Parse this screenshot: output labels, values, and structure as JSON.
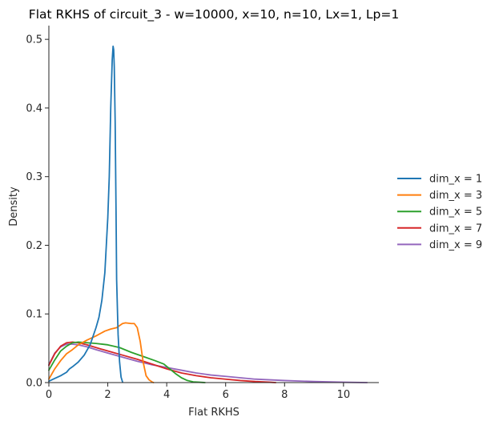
{
  "chart_data": {
    "type": "line",
    "title": "Flat RKHS of circuit_3 - w=10000, x=10, n=10, Lx=1, Lp=1",
    "xlabel": "Flat RKHS",
    "ylabel": "Density",
    "xlim": [
      0,
      11.2
    ],
    "ylim": [
      0,
      0.52
    ],
    "xticks": [
      0,
      2,
      4,
      6,
      8,
      10
    ],
    "yticks": [
      0.0,
      0.1,
      0.2,
      0.3,
      0.4,
      0.5
    ],
    "xtick_labels": [
      "0",
      "2",
      "4",
      "6",
      "8",
      "10"
    ],
    "ytick_labels": [
      "0.0",
      "0.1",
      "0.2",
      "0.3",
      "0.4",
      "0.5"
    ],
    "grid": false,
    "legend_position": "right",
    "series": [
      {
        "name": "dim_x = 1",
        "color": "#1f77b4",
        "x": [
          0,
          0.2,
          0.4,
          0.6,
          0.7,
          0.8,
          1.0,
          1.2,
          1.4,
          1.6,
          1.7,
          1.8,
          1.9,
          2.0,
          2.05,
          2.1,
          2.15,
          2.18,
          2.2,
          2.22,
          2.25,
          2.28,
          2.3,
          2.35,
          2.4,
          2.45,
          2.5
        ],
        "y": [
          0.002,
          0.006,
          0.01,
          0.015,
          0.02,
          0.023,
          0.03,
          0.04,
          0.055,
          0.08,
          0.095,
          0.12,
          0.16,
          0.24,
          0.3,
          0.4,
          0.47,
          0.49,
          0.485,
          0.46,
          0.38,
          0.25,
          0.15,
          0.07,
          0.03,
          0.008,
          0.001
        ]
      },
      {
        "name": "dim_x = 3",
        "color": "#ff7f0e",
        "x": [
          0,
          0.2,
          0.4,
          0.6,
          0.8,
          1.0,
          1.3,
          1.6,
          1.9,
          2.1,
          2.3,
          2.5,
          2.6,
          2.8,
          2.9,
          3.0,
          3.1,
          3.2,
          3.3,
          3.4,
          3.5,
          3.55
        ],
        "y": [
          0.005,
          0.02,
          0.032,
          0.042,
          0.048,
          0.055,
          0.062,
          0.068,
          0.075,
          0.078,
          0.08,
          0.086,
          0.087,
          0.086,
          0.086,
          0.08,
          0.06,
          0.03,
          0.01,
          0.004,
          0.001,
          0.0
        ]
      },
      {
        "name": "dim_x = 5",
        "color": "#2ca02c",
        "x": [
          0,
          0.2,
          0.4,
          0.6,
          0.8,
          1.0,
          1.3,
          1.6,
          2.0,
          2.4,
          2.8,
          3.2,
          3.6,
          3.9,
          4.1,
          4.3,
          4.5,
          4.7,
          4.9,
          5.1,
          5.3
        ],
        "y": [
          0.018,
          0.033,
          0.046,
          0.053,
          0.058,
          0.059,
          0.058,
          0.057,
          0.055,
          0.051,
          0.044,
          0.038,
          0.032,
          0.027,
          0.02,
          0.013,
          0.007,
          0.003,
          0.001,
          0.0005,
          0.0
        ]
      },
      {
        "name": "dim_x = 7",
        "color": "#d62728",
        "x": [
          0,
          0.2,
          0.4,
          0.6,
          0.8,
          1.0,
          1.3,
          1.6,
          2.0,
          2.5,
          3.0,
          3.5,
          4.0,
          4.5,
          5.0,
          5.5,
          6.0,
          6.5,
          7.0,
          7.5,
          7.7
        ],
        "y": [
          0.025,
          0.042,
          0.053,
          0.058,
          0.059,
          0.058,
          0.055,
          0.051,
          0.046,
          0.04,
          0.034,
          0.027,
          0.02,
          0.014,
          0.01,
          0.007,
          0.005,
          0.003,
          0.0015,
          0.0005,
          0.0
        ]
      },
      {
        "name": "dim_x = 9",
        "color": "#9467bd",
        "x": [
          0,
          0.2,
          0.4,
          0.6,
          0.8,
          1.0,
          1.3,
          1.6,
          2.0,
          2.5,
          3.0,
          3.5,
          4.0,
          4.5,
          5.0,
          5.5,
          6.0,
          6.5,
          7.0,
          8.0,
          9.0,
          10.0,
          10.8
        ],
        "y": [
          0.026,
          0.043,
          0.052,
          0.056,
          0.056,
          0.055,
          0.052,
          0.048,
          0.043,
          0.037,
          0.031,
          0.026,
          0.022,
          0.018,
          0.014,
          0.011,
          0.009,
          0.007,
          0.005,
          0.003,
          0.0015,
          0.0005,
          0.0
        ]
      }
    ]
  }
}
